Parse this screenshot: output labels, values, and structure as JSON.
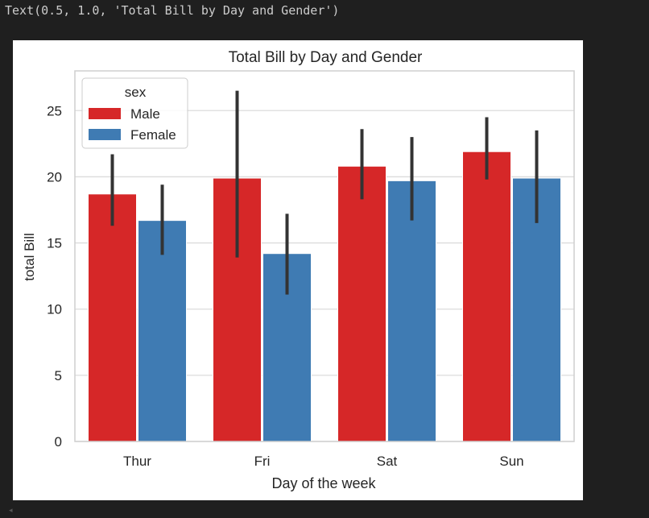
{
  "output_text": "Text(0.5, 1.0, 'Total Bill by Day and Gender')",
  "scroll_indicator": "◂",
  "chart_data": {
    "type": "bar",
    "title": "Total Bill by Day and Gender",
    "xlabel": "Day of the week",
    "ylabel": "total Bill",
    "categories": [
      "Thur",
      "Fri",
      "Sat",
      "Sun"
    ],
    "ylim": [
      0,
      28
    ],
    "yticks": [
      0,
      5,
      10,
      15,
      20,
      25
    ],
    "grid": true,
    "legend": {
      "title": "sex",
      "placement": "top-left"
    },
    "series": [
      {
        "name": "Male",
        "color": "#d62728",
        "values": [
          18.7,
          19.9,
          20.8,
          21.9
        ],
        "ci_low": [
          16.3,
          13.9,
          18.3,
          19.8
        ],
        "ci_high": [
          21.7,
          26.5,
          23.6,
          24.5
        ]
      },
      {
        "name": "Female",
        "color": "#3f7bb3",
        "values": [
          16.7,
          14.2,
          19.7,
          19.9
        ],
        "ci_low": [
          14.1,
          11.1,
          16.7,
          16.5
        ],
        "ci_high": [
          19.4,
          17.2,
          23.0,
          23.5
        ]
      }
    ],
    "error_bar_color": "#333333",
    "axis_color": "#cfcfcf"
  }
}
